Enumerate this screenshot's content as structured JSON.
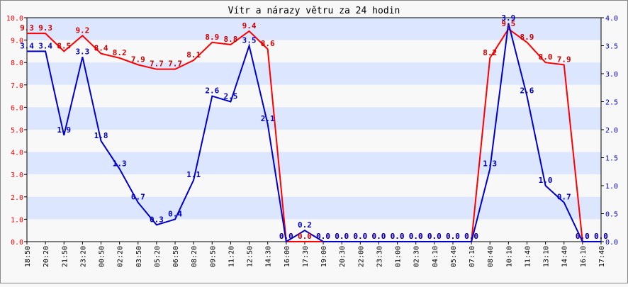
{
  "chart_data": {
    "type": "line",
    "title": "Vítr a nárazy větru za 24 hodin",
    "x": [
      "18:50",
      "20:20",
      "21:50",
      "23:20",
      "00:50",
      "02:20",
      "03:50",
      "05:20",
      "06:50",
      "08:20",
      "09:50",
      "11:20",
      "12:50",
      "14:30",
      "16:00",
      "17:30",
      "19:00",
      "20:30",
      "22:00",
      "23:30",
      "01:00",
      "02:30",
      "04:10",
      "05:40",
      "07:10",
      "08:40",
      "10:10",
      "11:40",
      "13:10",
      "14:40",
      "16:10",
      "17:40"
    ],
    "series": [
      {
        "axis": "left",
        "color": "#FF0000",
        "values": [
          9.3,
          9.3,
          8.5,
          9.2,
          8.4,
          8.2,
          7.9,
          7.7,
          7.7,
          8.1,
          8.9,
          8.8,
          9.4,
          8.6,
          0.0,
          0.0,
          0.0,
          0.0,
          0.0,
          0.0,
          0.0,
          0.0,
          0.0,
          0.0,
          0.0,
          8.2,
          9.5,
          8.9,
          8.0,
          7.9,
          0.0,
          0.0
        ],
        "labels": [
          "9.3",
          "9.3",
          "8.5",
          "9.2",
          "8.4",
          "8.2",
          "7.9",
          "7.7",
          "7.7",
          "8.1",
          "8.9",
          "8.8",
          "9.4",
          "8.6",
          "0.0",
          "0.0",
          "0.0",
          "0.0",
          "0.0",
          "0.0",
          "0.0",
          "0.0",
          "0.0",
          "0.0",
          "0.0",
          "8.2",
          "9.5",
          "8.9",
          "8.0",
          "7.9",
          "0.0",
          "0.0"
        ]
      },
      {
        "axis": "right",
        "color": "#0000CC",
        "values": [
          3.4,
          3.4,
          1.9,
          3.3,
          1.8,
          1.3,
          0.7,
          0.3,
          0.4,
          1.1,
          2.6,
          2.5,
          3.5,
          2.1,
          0.0,
          0.2,
          0.0,
          0.0,
          0.0,
          0.0,
          0.0,
          0.0,
          0.0,
          0.0,
          0.0,
          1.3,
          3.9,
          2.6,
          1.0,
          0.7,
          0.0,
          0.0
        ],
        "labels": [
          "3.4",
          "3.4",
          "1.9",
          "3.3",
          "1.8",
          "1.3",
          "0.7",
          "0.3",
          "0.4",
          "1.1",
          "2.6",
          "2.5",
          "3.5",
          "2.1",
          "0.0",
          "0.2",
          "0.0",
          "0.0",
          "0.0",
          "0.0",
          "0.0",
          "0.0",
          "0.0",
          "0.0",
          "0.0",
          "1.3",
          "3.9",
          "2.6",
          "1.0",
          "0.7",
          "0.0",
          "0.0"
        ]
      }
    ],
    "ylim_left": [
      0,
      10
    ],
    "yticks_left": [
      "0.0",
      "1.0",
      "2.0",
      "3.0",
      "4.0",
      "5.0",
      "6.0",
      "7.0",
      "8.0",
      "9.0",
      "10.0"
    ],
    "ylim_right": [
      0,
      4
    ],
    "yticks_right": [
      "0.0",
      "0.5",
      "1.0",
      "1.5",
      "2.0",
      "2.5",
      "3.0",
      "3.5",
      "4.0"
    ],
    "grid": "horizontal bands",
    "band_colors": [
      "#DDE6FF",
      "#F8F8F8"
    ],
    "legend": "none"
  }
}
